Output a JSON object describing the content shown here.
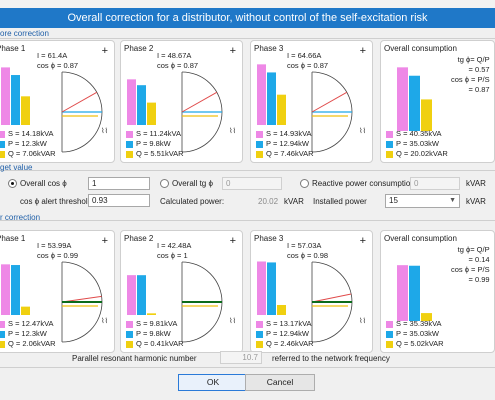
{
  "dialog": {
    "title": "Overall correction for a distributor, without control of the self-excitation risk"
  },
  "colors": {
    "S": "#ee88e6",
    "P": "#1ea8e8",
    "Q": "#f0d010"
  },
  "before": {
    "section_label": "ore correction",
    "phases": [
      {
        "title": "Phase 1",
        "I": "I = 61.4A",
        "cos": "cos ϕ = 0.87",
        "S": "S = 14.18kVA",
        "P": "P = 12.3kW",
        "Q": "Q = 7.06kVAR",
        "bars": {
          "S": 14.18,
          "P": 12.3,
          "Q": 7.06
        }
      },
      {
        "title": "Phase 2",
        "I": "I = 48.67A",
        "cos": "cos ϕ = 0.87",
        "S": "S = 11.24kVA",
        "P": "P = 9.8kW",
        "Q": "Q = 5.51kVAR",
        "bars": {
          "S": 11.24,
          "P": 9.8,
          "Q": 5.51
        }
      },
      {
        "title": "Phase 3",
        "I": "I = 64.66A",
        "cos": "cos ϕ = 0.87",
        "S": "S = 14.93kVA",
        "P": "P = 12.94kW",
        "Q": "Q = 7.46kVAR",
        "bars": {
          "S": 14.93,
          "P": 12.94,
          "Q": 7.46
        }
      }
    ],
    "overall": {
      "title": "Overall consumption",
      "tg_label": "tg ϕ= Q/P",
      "tg_value": "= 0.57",
      "cos_label": "cos ϕ = P/S",
      "cos_value": "= 0.87",
      "S": "S = 40.35kVA",
      "P": "P = 35.03kW",
      "Q": "Q = 20.02kVAR",
      "bars": {
        "S": 40.35,
        "P": 35.03,
        "Q": 20.02
      }
    }
  },
  "target": {
    "section_label": "get value",
    "overall_cos_label": "Overall cos ϕ",
    "overall_cos_value": "1",
    "overall_tg_label": "Overall tg ϕ",
    "overall_tg_value": "0",
    "reactive_label": "Reactive power consumption",
    "reactive_value": "0",
    "reactive_unit": "kVAR",
    "cos_alert_label": "cos ϕ alert threshold",
    "cos_alert_value": "0.93",
    "calculated_label": "Calculated power:",
    "calculated_value": "20.02",
    "calculated_unit": "kVAR",
    "installed_label": "Installed power",
    "installed_value": "15",
    "installed_unit": "kVAR",
    "selected_option": "Overall cos ϕ"
  },
  "after": {
    "section_label": "r correction",
    "phases": [
      {
        "title": "Phase 1",
        "I": "I = 53.99A",
        "cos": "cos ϕ = 0.99",
        "S": "S = 12.47kVA",
        "P": "P = 12.3kW",
        "Q": "Q = 2.06kVAR",
        "bars": {
          "S": 12.47,
          "P": 12.3,
          "Q": 2.06
        }
      },
      {
        "title": "Phase 2",
        "I": "I = 42.48A",
        "cos": "cos ϕ = 1",
        "S": "S = 9.81kVA",
        "P": "P = 9.8kW",
        "Q": "Q = 0.41kVAR",
        "bars": {
          "S": 9.81,
          "P": 9.8,
          "Q": 0.41
        }
      },
      {
        "title": "Phase 3",
        "I": "I = 57.03A",
        "cos": "cos ϕ = 0.98",
        "S": "S = 13.17kVA",
        "P": "P = 12.94kW",
        "Q": "Q = 2.46kVAR",
        "bars": {
          "S": 13.17,
          "P": 12.94,
          "Q": 2.46
        }
      }
    ],
    "overall": {
      "title": "Overall consumption",
      "tg_label": "tg ϕ= Q/P",
      "tg_value": "= 0.14",
      "cos_label": "cos ϕ = P/S",
      "cos_value": "= 0.99",
      "S": "S = 35.39kVA",
      "P": "P = 35.03kW",
      "Q": "Q = 5.02kVAR",
      "bars": {
        "S": 35.39,
        "P": 35.03,
        "Q": 5.02
      }
    }
  },
  "harmonic": {
    "label": "Parallel resonant harmonic number",
    "value": "10.7",
    "suffix": "referred to the network frequency"
  },
  "buttons": {
    "ok": "OK",
    "cancel": "Cancel"
  }
}
